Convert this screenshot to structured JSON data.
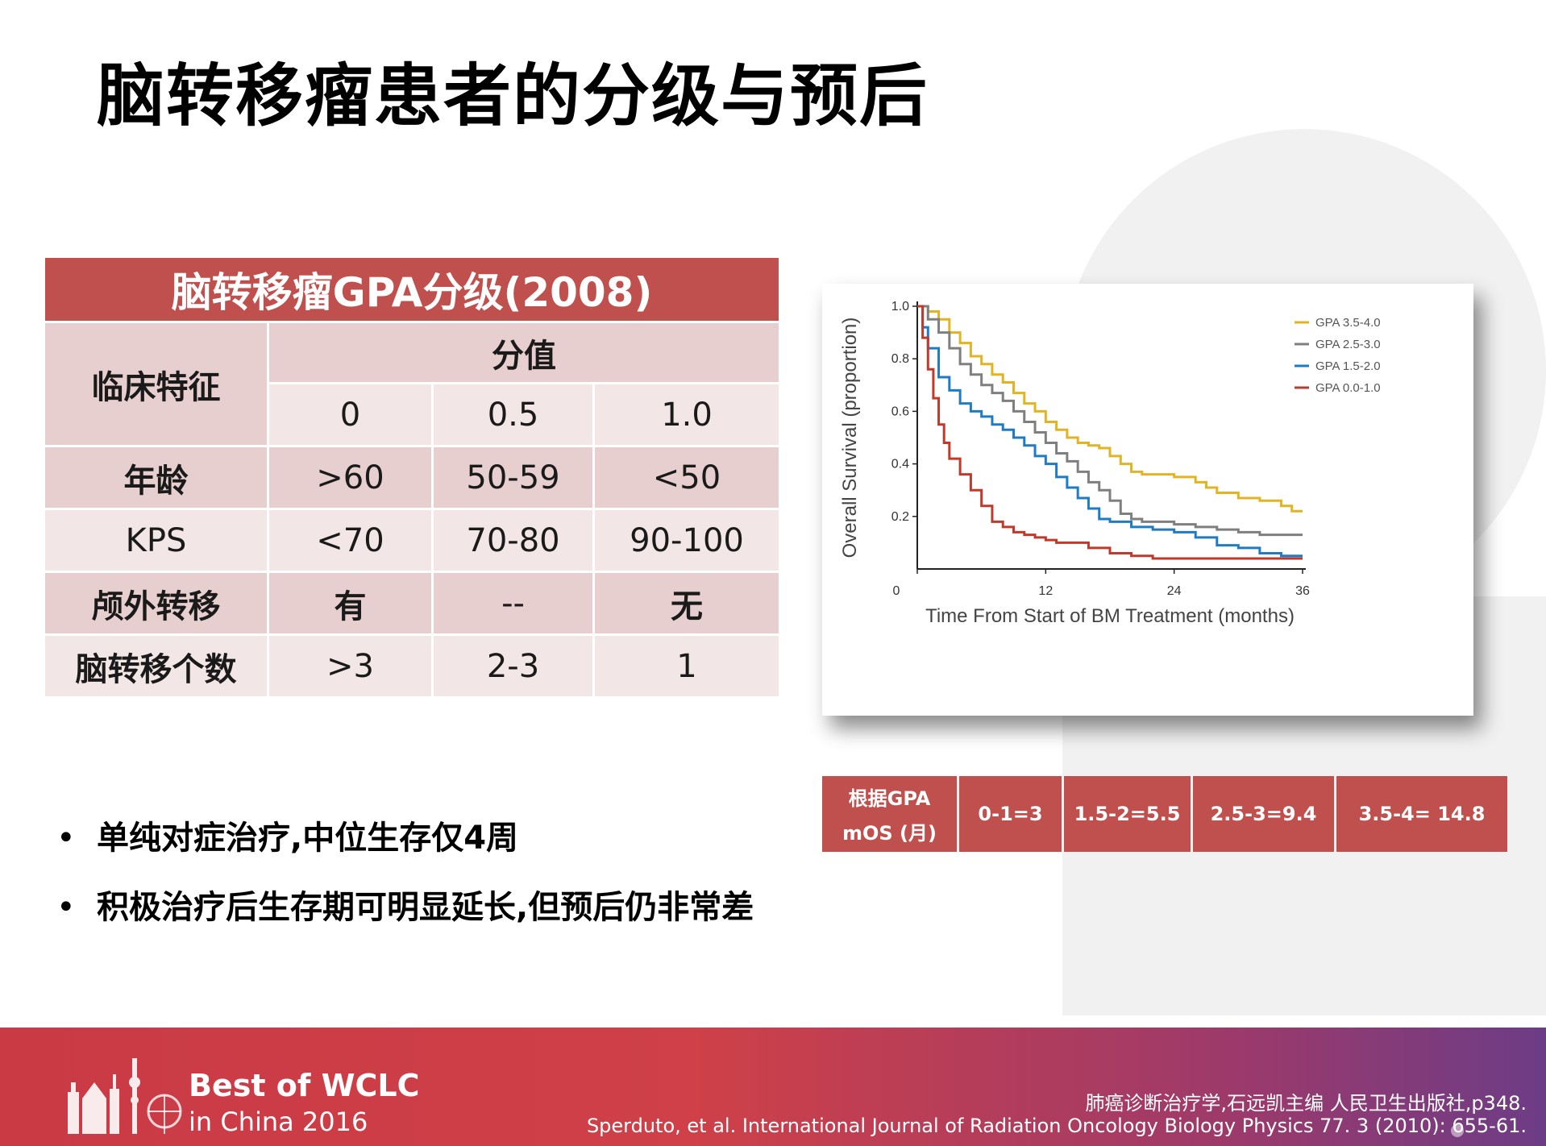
{
  "slide": {
    "title": "脑转移瘤患者的分级与预后"
  },
  "gpa_table": {
    "title": "脑转移瘤GPA分级(2008)",
    "feature_header": "临床特征",
    "score_header": "分值",
    "scores": [
      "0",
      "0.5",
      "1.0"
    ],
    "rows": [
      {
        "label": "年龄",
        "values": [
          ">60",
          "50-59",
          "<50"
        ]
      },
      {
        "label": "KPS",
        "values": [
          "<70",
          "70-80",
          "90-100"
        ]
      },
      {
        "label": "颅外转移",
        "values": [
          "有",
          "--",
          "无"
        ]
      },
      {
        "label": "脑转移个数",
        "values": [
          ">3",
          "2-3",
          "1"
        ]
      }
    ]
  },
  "chart_data": {
    "type": "line",
    "title": "",
    "xlabel": "Time From Start of BM Treatment (months)",
    "ylabel": "Overall Survival (proportion)",
    "xlim": [
      0,
      36
    ],
    "ylim": [
      0,
      1.0
    ],
    "x_ticks": [
      "0",
      "12",
      "24",
      "36"
    ],
    "y_ticks": [
      "0.2",
      "0.4",
      "0.6",
      "0.8",
      "1.0"
    ],
    "legend_position": "top-right",
    "series": [
      {
        "name": "GPA 3.5-4.0",
        "color": "#e2b323",
        "points": [
          [
            0,
            1.0
          ],
          [
            1,
            0.98
          ],
          [
            2,
            0.95
          ],
          [
            3,
            0.9
          ],
          [
            4,
            0.86
          ],
          [
            5,
            0.81
          ],
          [
            6,
            0.78
          ],
          [
            7,
            0.74
          ],
          [
            8,
            0.71
          ],
          [
            9,
            0.67
          ],
          [
            10,
            0.63
          ],
          [
            11,
            0.6
          ],
          [
            12,
            0.56
          ],
          [
            13,
            0.53
          ],
          [
            14,
            0.5
          ],
          [
            15,
            0.48
          ],
          [
            16,
            0.47
          ],
          [
            17,
            0.46
          ],
          [
            18,
            0.43
          ],
          [
            19,
            0.4
          ],
          [
            20,
            0.37
          ],
          [
            21,
            0.36
          ],
          [
            22,
            0.36
          ],
          [
            24,
            0.35
          ],
          [
            26,
            0.33
          ],
          [
            27,
            0.31
          ],
          [
            28,
            0.29
          ],
          [
            30,
            0.27
          ],
          [
            32,
            0.26
          ],
          [
            34,
            0.24
          ],
          [
            35,
            0.22
          ],
          [
            36,
            0.22
          ]
        ]
      },
      {
        "name": "GPA 2.5-3.0",
        "color": "#7f7f7f",
        "points": [
          [
            0,
            1.0
          ],
          [
            1,
            0.95
          ],
          [
            2,
            0.9
          ],
          [
            3,
            0.84
          ],
          [
            4,
            0.78
          ],
          [
            5,
            0.74
          ],
          [
            6,
            0.7
          ],
          [
            7,
            0.67
          ],
          [
            8,
            0.64
          ],
          [
            9,
            0.6
          ],
          [
            10,
            0.56
          ],
          [
            11,
            0.52
          ],
          [
            12,
            0.48
          ],
          [
            13,
            0.44
          ],
          [
            14,
            0.41
          ],
          [
            15,
            0.37
          ],
          [
            16,
            0.33
          ],
          [
            17,
            0.3
          ],
          [
            18,
            0.26
          ],
          [
            19,
            0.21
          ],
          [
            20,
            0.19
          ],
          [
            21,
            0.18
          ],
          [
            22,
            0.18
          ],
          [
            24,
            0.17
          ],
          [
            26,
            0.16
          ],
          [
            28,
            0.15
          ],
          [
            30,
            0.14
          ],
          [
            32,
            0.13
          ],
          [
            34,
            0.13
          ],
          [
            36,
            0.13
          ]
        ]
      },
      {
        "name": "GPA 1.5-2.0",
        "color": "#1f7bc4",
        "points": [
          [
            0,
            1.0
          ],
          [
            0.5,
            0.92
          ],
          [
            1,
            0.84
          ],
          [
            2,
            0.73
          ],
          [
            3,
            0.68
          ],
          [
            4,
            0.63
          ],
          [
            5,
            0.6
          ],
          [
            6,
            0.58
          ],
          [
            7,
            0.55
          ],
          [
            8,
            0.53
          ],
          [
            9,
            0.5
          ],
          [
            10,
            0.47
          ],
          [
            11,
            0.43
          ],
          [
            12,
            0.4
          ],
          [
            13,
            0.35
          ],
          [
            14,
            0.31
          ],
          [
            15,
            0.27
          ],
          [
            16,
            0.23
          ],
          [
            17,
            0.19
          ],
          [
            18,
            0.18
          ],
          [
            20,
            0.16
          ],
          [
            22,
            0.15
          ],
          [
            24,
            0.14
          ],
          [
            26,
            0.12
          ],
          [
            28,
            0.09
          ],
          [
            30,
            0.08
          ],
          [
            32,
            0.06
          ],
          [
            34,
            0.05
          ],
          [
            36,
            0.05
          ]
        ]
      },
      {
        "name": "GPA 0.0-1.0",
        "color": "#c0392b",
        "points": [
          [
            0,
            1.0
          ],
          [
            0.5,
            0.88
          ],
          [
            1,
            0.76
          ],
          [
            1.5,
            0.65
          ],
          [
            2,
            0.55
          ],
          [
            2.5,
            0.48
          ],
          [
            3,
            0.42
          ],
          [
            4,
            0.36
          ],
          [
            5,
            0.3
          ],
          [
            6,
            0.24
          ],
          [
            7,
            0.18
          ],
          [
            8,
            0.16
          ],
          [
            9,
            0.14
          ],
          [
            10,
            0.13
          ],
          [
            11,
            0.12
          ],
          [
            12,
            0.11
          ],
          [
            13,
            0.1
          ],
          [
            14,
            0.1
          ],
          [
            16,
            0.08
          ],
          [
            18,
            0.06
          ],
          [
            20,
            0.05
          ],
          [
            22,
            0.04
          ],
          [
            24,
            0.04
          ],
          [
            28,
            0.04
          ],
          [
            32,
            0.04
          ],
          [
            36,
            0.04
          ]
        ]
      }
    ]
  },
  "mos_table": {
    "header_line1": "根据GPA",
    "header_line2": "mOS (月)",
    "values": [
      "0-1=3",
      "1.5-2=5.5",
      "2.5-3=9.4",
      "3.5-4= 14.8"
    ]
  },
  "bullets": [
    "单纯对症治疗,中位生存仅4周",
    "积极治疗后生存期可明显延长,但预后仍非常差"
  ],
  "bullet_symbol": "•",
  "footer": {
    "brand_line1": "Best of WCLC",
    "brand_line2": "in China 2016",
    "reference_1": "肺癌诊断治疗学,石远凯主编  人民卫生出版社,p348.",
    "reference_2": "Sperduto, et al. International Journal of Radiation Oncology Biology Physics 77. 3 (2010):  655-61."
  },
  "colors": {
    "accent_red": "#c0504d",
    "table_dark": "#e8cfcf",
    "table_light": "#f3e6e6"
  }
}
